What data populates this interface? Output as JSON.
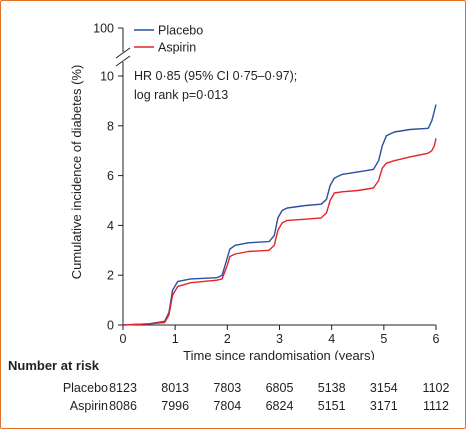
{
  "chart_data": {
    "type": "line",
    "ylabel": "Cumulative incidence of diabetes (%)",
    "xlabel": "Time since randomisation (years)",
    "x_ticks": [
      "0",
      "1",
      "2",
      "3",
      "4",
      "5",
      "6"
    ],
    "y_ticks": [
      "0",
      "2",
      "4",
      "6",
      "8",
      "10"
    ],
    "y_top_tick": "100",
    "xlim": [
      0,
      6
    ],
    "ylim": [
      0,
      10
    ],
    "annotation": [
      "HR 0·85 (95% CI 0·75–0·97);",
      "log rank p=0·013"
    ],
    "legend_position": "top-left",
    "series": [
      {
        "name": "Placebo",
        "color": "#2b4fa1",
        "x": [
          0,
          0.5,
          0.8,
          0.88,
          0.95,
          1.05,
          1.3,
          1.8,
          1.9,
          2.0,
          2.05,
          2.15,
          2.4,
          2.8,
          2.9,
          2.97,
          3.05,
          3.15,
          3.5,
          3.8,
          3.9,
          3.97,
          4.05,
          4.2,
          4.5,
          4.8,
          4.9,
          4.97,
          5.05,
          5.2,
          5.5,
          5.85,
          5.92,
          5.97,
          6.0
        ],
        "y": [
          0,
          0.05,
          0.15,
          0.5,
          1.4,
          1.75,
          1.85,
          1.9,
          2.0,
          2.7,
          3.05,
          3.2,
          3.3,
          3.35,
          3.6,
          4.3,
          4.6,
          4.7,
          4.8,
          4.85,
          5.05,
          5.6,
          5.9,
          6.05,
          6.15,
          6.25,
          6.6,
          7.2,
          7.6,
          7.75,
          7.85,
          7.9,
          8.2,
          8.6,
          8.85
        ]
      },
      {
        "name": "Aspirin",
        "color": "#e5232a",
        "x": [
          0,
          0.5,
          0.8,
          0.88,
          0.95,
          1.05,
          1.3,
          1.8,
          1.9,
          2.0,
          2.05,
          2.15,
          2.4,
          2.8,
          2.9,
          2.97,
          3.05,
          3.15,
          3.5,
          3.8,
          3.9,
          3.97,
          4.05,
          4.2,
          4.5,
          4.8,
          4.9,
          4.97,
          5.05,
          5.2,
          5.5,
          5.85,
          5.92,
          5.97,
          6.0
        ],
        "y": [
          0,
          0.05,
          0.1,
          0.4,
          1.2,
          1.55,
          1.7,
          1.8,
          1.85,
          2.4,
          2.75,
          2.85,
          2.95,
          3.0,
          3.2,
          3.8,
          4.1,
          4.2,
          4.25,
          4.3,
          4.5,
          5.0,
          5.3,
          5.35,
          5.4,
          5.5,
          5.8,
          6.3,
          6.5,
          6.6,
          6.75,
          6.9,
          7.0,
          7.2,
          7.5
        ]
      }
    ]
  },
  "risk_table": {
    "title": "Number at risk",
    "rows": [
      {
        "label": "Placebo",
        "values": [
          "8123",
          "8013",
          "7803",
          "6805",
          "5138",
          "3154",
          "1102"
        ]
      },
      {
        "label": "Aspirin",
        "values": [
          "8086",
          "7996",
          "7804",
          "6824",
          "5151",
          "3171",
          "1112"
        ]
      }
    ]
  }
}
